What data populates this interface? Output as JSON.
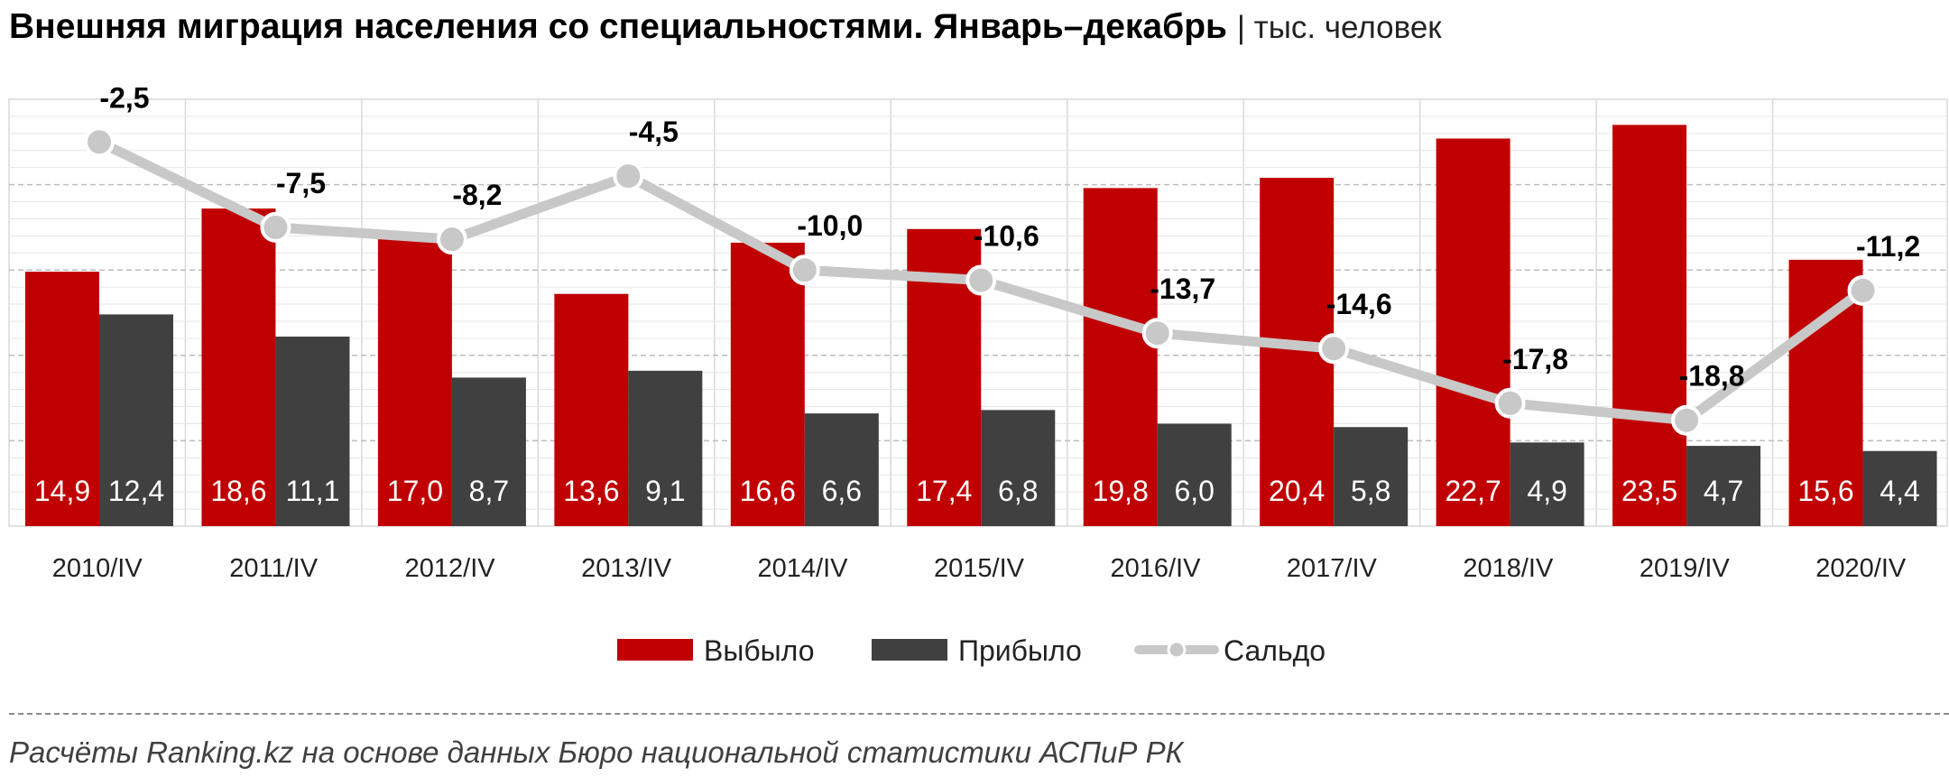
{
  "title": {
    "main": "Внешняя миграция населения со специальностями. Январь–декабрь",
    "unit": "| тыс. человек"
  },
  "source": "Расчёты Ranking.kz на основе данных  Бюро национальной  статистики АСПиР РК",
  "colors": {
    "left": "#c00000",
    "arrived": "#404040",
    "balance": "#c8c8c8",
    "grid": "#d9d9d9"
  },
  "chart_data": {
    "type": "bar",
    "categories": [
      "2010/IV",
      "2011/IV",
      "2012/IV",
      "2013/IV",
      "2014/IV",
      "2015/IV",
      "2016/IV",
      "2017/IV",
      "2018/IV",
      "2019/IV",
      "2020/IV"
    ],
    "series": [
      {
        "name": "Выбыло",
        "type": "bar",
        "values": [
          14.9,
          18.6,
          17.0,
          13.6,
          16.6,
          17.4,
          19.8,
          20.4,
          22.7,
          23.5,
          15.6
        ],
        "labels": [
          "14,9",
          "18,6",
          "17,0",
          "13,6",
          "16,6",
          "17,4",
          "19,8",
          "20,4",
          "22,7",
          "23,5",
          "15,6"
        ]
      },
      {
        "name": "Прибыло",
        "type": "bar",
        "values": [
          12.4,
          11.1,
          8.7,
          9.1,
          6.6,
          6.8,
          6.0,
          5.8,
          4.9,
          4.7,
          4.4
        ],
        "labels": [
          "12,4",
          "11,1",
          "8,7",
          "9,1",
          "6,6",
          "6,8",
          "6,0",
          "5,8",
          "4,9",
          "4,7",
          "4,4"
        ]
      },
      {
        "name": "Сальдо",
        "type": "line",
        "values": [
          -2.5,
          -7.5,
          -8.2,
          -4.5,
          -10.0,
          -10.6,
          -13.7,
          -14.6,
          -17.8,
          -18.8,
          -11.2
        ],
        "labels": [
          "-2,5",
          "-7,5",
          "-8,2",
          "-4,5",
          "-10,0",
          "-10,6",
          "-13,7",
          "-14,6",
          "-17,8",
          "-18,8",
          "-11,2"
        ]
      }
    ],
    "legend": "bottom",
    "grid": true
  }
}
